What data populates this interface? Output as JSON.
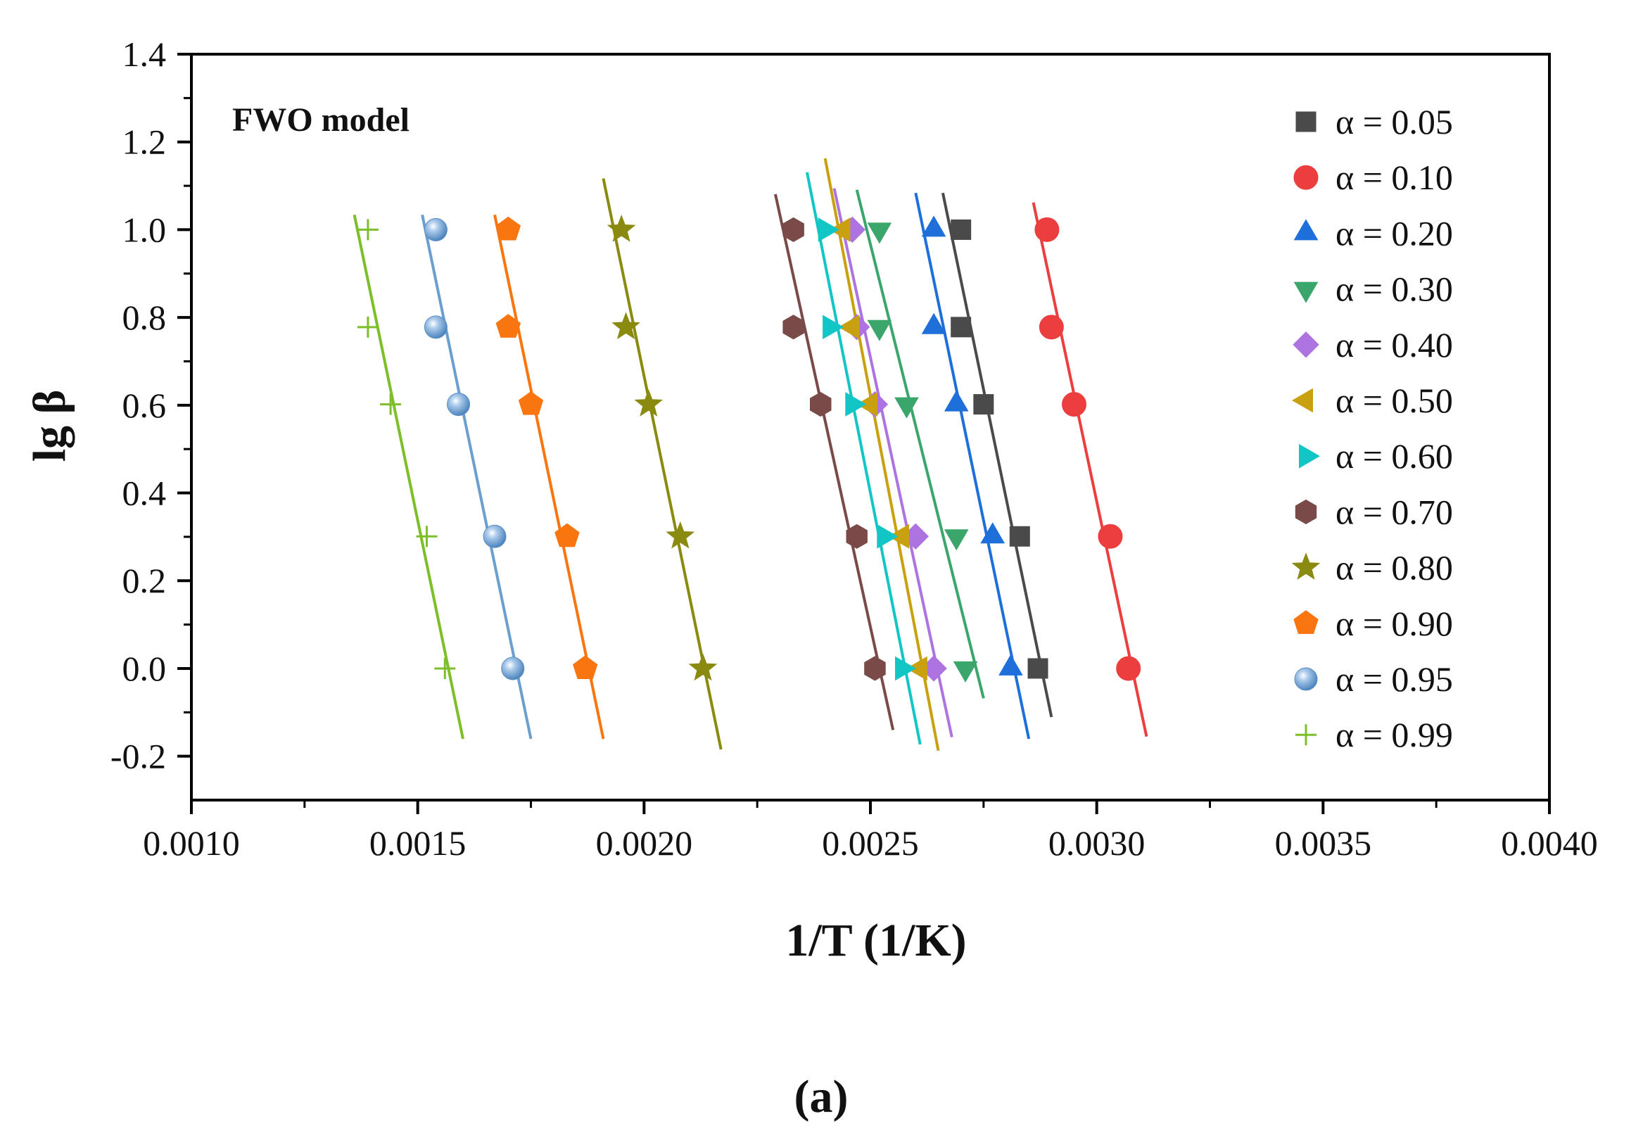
{
  "chart_data": {
    "type": "scatter",
    "title": "",
    "annotation": "FWO model",
    "xlabel": "1/T (1/K)",
    "ylabel": "lg β",
    "xlim": [
      0.001,
      0.004
    ],
    "ylim": [
      -0.3,
      1.4
    ],
    "x_ticks": [
      "0.0010",
      "0.0015",
      "0.0020",
      "0.0025",
      "0.0030",
      "0.0035",
      "0.0040"
    ],
    "y_ticks": [
      "-0.2",
      "0.0",
      "0.2",
      "0.4",
      "0.6",
      "0.8",
      "1.0",
      "1.2",
      "1.4"
    ],
    "y": [
      0.0,
      0.301,
      0.602,
      0.778,
      1.0
    ],
    "legend_position": "right",
    "series": [
      {
        "name": "α = 0.05",
        "marker": "square",
        "color": "#4a4a4a",
        "x": [
          0.00287,
          0.00283,
          0.00275,
          0.0027,
          0.0027
        ],
        "fit_x": [
          0.00266,
          0.0029
        ]
      },
      {
        "name": "α = 0.10",
        "marker": "circle",
        "color": "#ec3e3e",
        "x": [
          0.00307,
          0.00303,
          0.00295,
          0.0029,
          0.00289
        ],
        "fit_x": [
          0.00286,
          0.00311
        ]
      },
      {
        "name": "α = 0.20",
        "marker": "triangle-up",
        "color": "#1f6fdb",
        "x": [
          0.00281,
          0.00277,
          0.00269,
          0.00264,
          0.00264
        ],
        "fit_x": [
          0.0026,
          0.00285
        ]
      },
      {
        "name": "α = 0.30",
        "marker": "triangle-down",
        "color": "#3aa66b",
        "x": [
          0.00271,
          0.00269,
          0.00258,
          0.00252,
          0.00252
        ],
        "fit_x": [
          0.00247,
          0.00275
        ]
      },
      {
        "name": "α = 0.40",
        "marker": "diamond",
        "color": "#ad73e0",
        "x": [
          0.00264,
          0.0026,
          0.00251,
          0.00247,
          0.00246
        ],
        "fit_x": [
          0.00242,
          0.00268
        ]
      },
      {
        "name": "α = 0.50",
        "marker": "triangle-left",
        "color": "#c9a00f",
        "x": [
          0.00261,
          0.00257,
          0.0025,
          0.00246,
          0.00244
        ],
        "fit_x": [
          0.0024,
          0.00265
        ]
      },
      {
        "name": "α = 0.60",
        "marker": "triangle-right",
        "color": "#12c6c6",
        "x": [
          0.00257,
          0.00253,
          0.00246,
          0.00241,
          0.0024
        ],
        "fit_x": [
          0.00236,
          0.00261
        ]
      },
      {
        "name": "α = 0.70",
        "marker": "hexagon",
        "color": "#7a4a48",
        "x": [
          0.00251,
          0.00247,
          0.00239,
          0.00233,
          0.00233
        ],
        "fit_x": [
          0.00229,
          0.00255
        ]
      },
      {
        "name": "α = 0.80",
        "marker": "star",
        "color": "#8a8a10",
        "x": [
          0.00213,
          0.00208,
          0.00201,
          0.00196,
          0.00195
        ],
        "fit_x": [
          0.00191,
          0.00217
        ]
      },
      {
        "name": "α = 0.90",
        "marker": "pentagon",
        "color": "#f97510",
        "x": [
          0.00187,
          0.00183,
          0.00175,
          0.0017,
          0.0017
        ],
        "fit_x": [
          0.00167,
          0.00191
        ]
      },
      {
        "name": "α = 0.95",
        "marker": "sphere",
        "color": "#6a9fd0",
        "x": [
          0.00171,
          0.00167,
          0.00159,
          0.00154,
          0.00154
        ],
        "fit_x": [
          0.00151,
          0.00175
        ]
      },
      {
        "name": "α = 0.99",
        "marker": "plus",
        "color": "#7cbf2a",
        "x": [
          0.00156,
          0.00152,
          0.00144,
          0.00139,
          0.00139
        ],
        "fit_x": [
          0.00136,
          0.0016
        ]
      }
    ]
  },
  "caption": "(a)"
}
